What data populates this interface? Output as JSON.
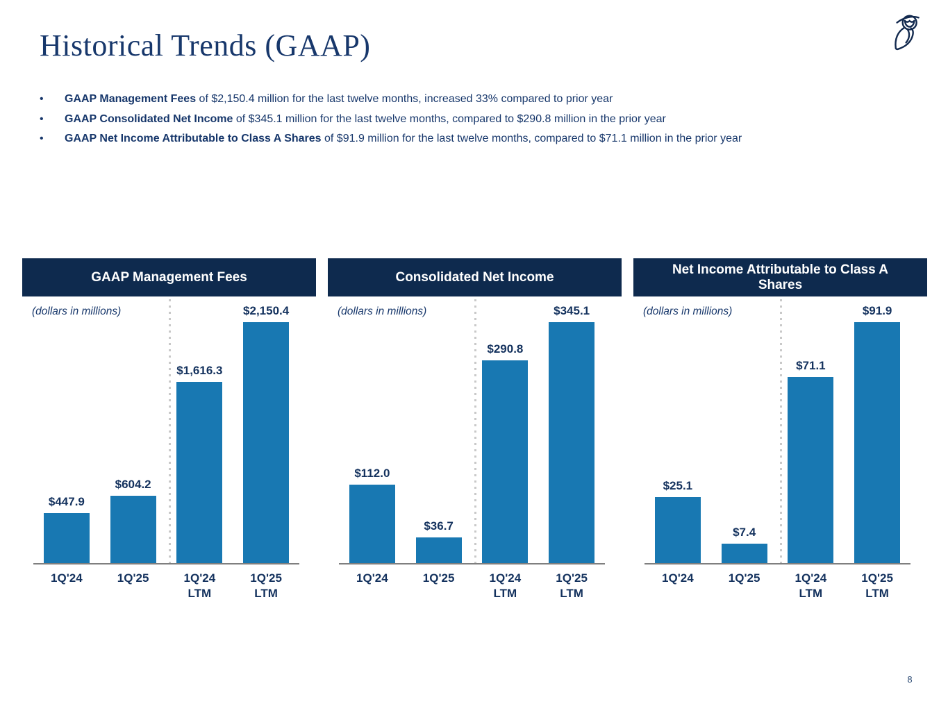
{
  "page": {
    "title": "Historical Trends (GAAP)",
    "page_number": "8",
    "logo_icon": "owl-logo-icon"
  },
  "bullets": [
    {
      "bold": "GAAP Management Fees",
      "rest": " of $2,150.4 million for the last twelve months, increased 33% compared to prior year"
    },
    {
      "bold": "GAAP Consolidated Net Income",
      "rest": " of $345.1 million for the last twelve months, compared to $290.8 million in the prior year"
    },
    {
      "bold": "GAAP Net Income Attributable to Class A Shares",
      "rest": " of $91.9 million for the last twelve months, compared to $71.1 million in the prior year"
    }
  ],
  "colors": {
    "header_navy": "#0E2A4E",
    "bar_blue": "#1878B2",
    "text_navy": "#17376B",
    "label_navy": "#14325E",
    "axis_gray": "#7F7F7F",
    "divider_gray": "#C9C9C9"
  },
  "chart_data": [
    {
      "type": "bar",
      "title": "GAAP Management Fees",
      "units_label": "(dollars in millions)",
      "categories": [
        "1Q'24",
        "1Q'25",
        "1Q'24 LTM",
        "1Q'25 LTM"
      ],
      "values": [
        447.9,
        604.2,
        1616.3,
        2150.4
      ],
      "labels": [
        "$447.9",
        "$604.2",
        "$1,616.3",
        "$2,150.4"
      ],
      "ylim": [
        0,
        2150.4
      ],
      "grid": false,
      "data_labels": true,
      "divider_after_category_index": 1
    },
    {
      "type": "bar",
      "title": "Consolidated Net Income",
      "units_label": "(dollars in millions)",
      "categories": [
        "1Q'24",
        "1Q'25",
        "1Q'24 LTM",
        "1Q'25 LTM"
      ],
      "values": [
        112.0,
        36.7,
        290.8,
        345.1
      ],
      "labels": [
        "$112.0",
        "$36.7",
        "$290.8",
        "$345.1"
      ],
      "ylim": [
        0,
        345.1
      ],
      "grid": false,
      "data_labels": true,
      "divider_after_category_index": 1
    },
    {
      "type": "bar",
      "title": "Net Income Attributable to Class A Shares",
      "units_label": "(dollars in millions)",
      "categories": [
        "1Q'24",
        "1Q'25",
        "1Q'24 LTM",
        "1Q'25 LTM"
      ],
      "values": [
        25.1,
        7.4,
        71.1,
        91.9
      ],
      "labels": [
        "$25.1",
        "$7.4",
        "$71.1",
        "$91.9"
      ],
      "ylim": [
        0,
        91.9
      ],
      "grid": false,
      "data_labels": true,
      "divider_after_category_index": 1
    }
  ]
}
